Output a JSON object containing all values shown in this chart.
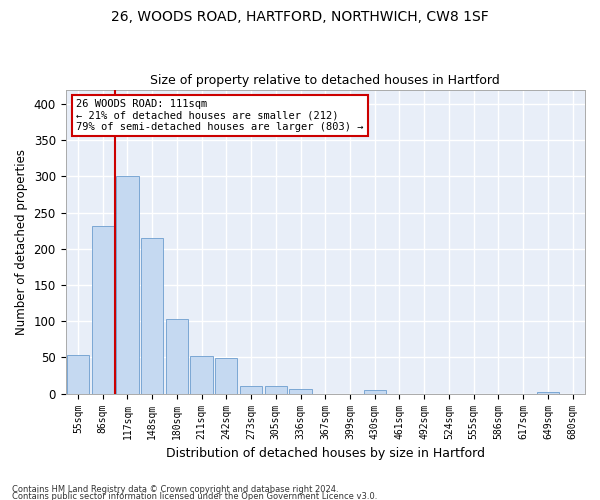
{
  "title1": "26, WOODS ROAD, HARTFORD, NORTHWICH, CW8 1SF",
  "title2": "Size of property relative to detached houses in Hartford",
  "xlabel": "Distribution of detached houses by size in Hartford",
  "ylabel": "Number of detached properties",
  "categories": [
    "55sqm",
    "86sqm",
    "117sqm",
    "148sqm",
    "180sqm",
    "211sqm",
    "242sqm",
    "273sqm",
    "305sqm",
    "336sqm",
    "367sqm",
    "399sqm",
    "430sqm",
    "461sqm",
    "492sqm",
    "524sqm",
    "555sqm",
    "586sqm",
    "617sqm",
    "649sqm",
    "680sqm"
  ],
  "values": [
    53,
    232,
    300,
    215,
    103,
    52,
    49,
    10,
    10,
    6,
    0,
    0,
    5,
    0,
    0,
    0,
    0,
    0,
    0,
    3,
    0
  ],
  "bar_color": "#c5d9f1",
  "bar_edge_color": "#7ba7d4",
  "vline_x": 2.5,
  "highlight_label": "26 WOODS ROAD: 111sqm",
  "line1": "← 21% of detached houses are smaller (212)",
  "line2": "79% of semi-detached houses are larger (803) →",
  "ylim": [
    0,
    420
  ],
  "yticks": [
    0,
    50,
    100,
    150,
    200,
    250,
    300,
    350,
    400
  ],
  "annotation_box_color": "#ffffff",
  "annotation_box_edge": "#cc0000",
  "vline_color": "#cc0000",
  "bg_color": "#e8eef8",
  "grid_color": "#ffffff",
  "footnote1": "Contains HM Land Registry data © Crown copyright and database right 2024.",
  "footnote2": "Contains public sector information licensed under the Open Government Licence v3.0."
}
